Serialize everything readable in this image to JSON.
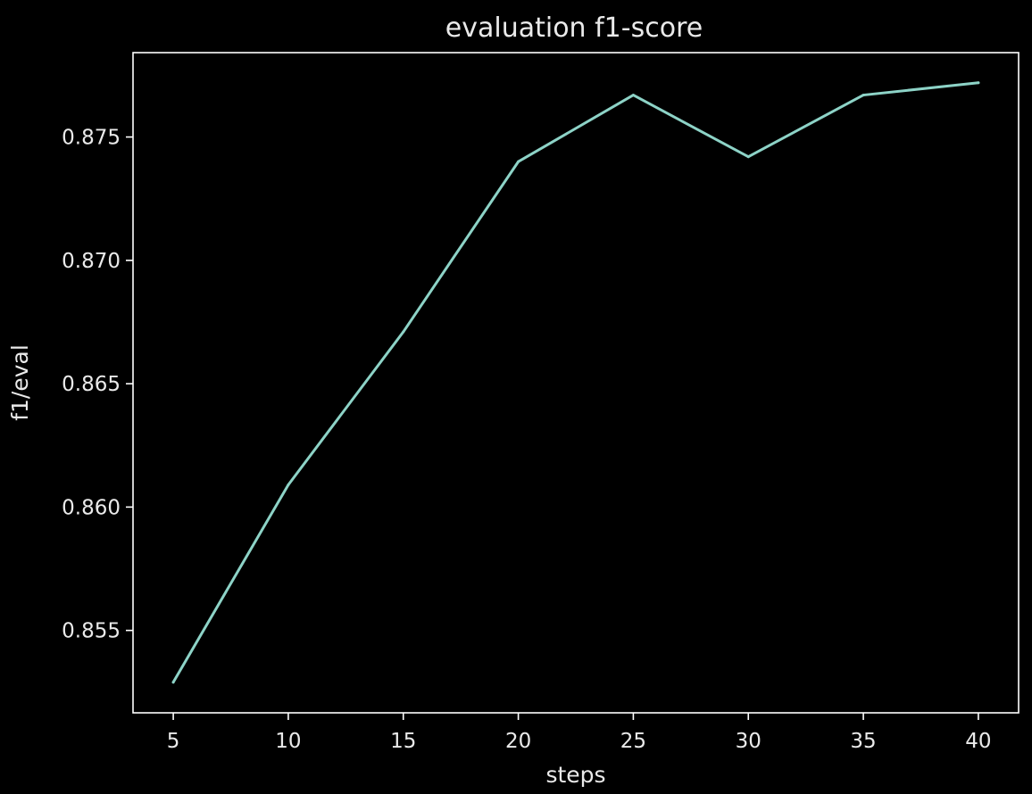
{
  "colors": {
    "background": "#000000",
    "axes": "#ffffff",
    "text": "#eaeaea",
    "series_line": "#8dd3c7"
  },
  "chart_data": {
    "type": "line",
    "title": "evaluation f1-score",
    "xlabel": "steps",
    "ylabel": "f1/eval",
    "x": [
      5,
      10,
      15,
      20,
      25,
      30,
      35,
      40
    ],
    "series": [
      {
        "values": [
          0.8529,
          0.8609,
          0.8671,
          0.874,
          0.8767,
          0.8742,
          0.8767,
          0.8772
        ]
      }
    ],
    "xticks": [
      5,
      10,
      15,
      20,
      25,
      30,
      35,
      40
    ],
    "xtick_labels": [
      "5",
      "10",
      "15",
      "20",
      "25",
      "30",
      "35",
      "40"
    ],
    "yticks": [
      0.855,
      0.86,
      0.865,
      0.87,
      0.875
    ],
    "ytick_labels": [
      "0.855",
      "0.860",
      "0.865",
      "0.870",
      "0.875"
    ],
    "xlim": [
      3.25,
      41.75
    ],
    "ylim": [
      0.85166,
      0.87842
    ],
    "grid": false,
    "legend": false
  }
}
